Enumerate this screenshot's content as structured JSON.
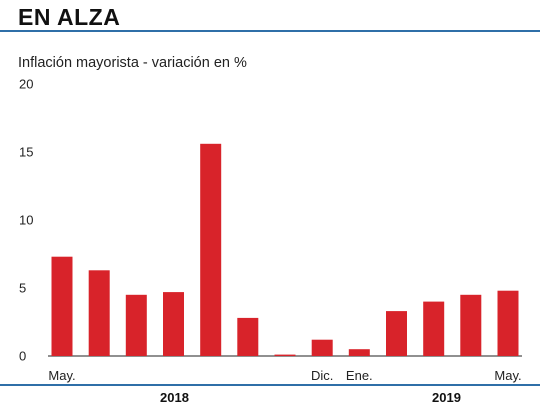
{
  "header": {
    "title": "EN ALZA",
    "subtitle": "Inflación mayorista - variación en %"
  },
  "colors": {
    "bar": "#d8232a",
    "rule": "#2f6fa8",
    "text": "#222222"
  },
  "chart_data": {
    "type": "bar",
    "title": "EN ALZA",
    "subtitle": "Inflación mayorista - variación en %",
    "xlabel": "",
    "ylabel": "",
    "ylim": [
      0,
      20
    ],
    "yticks": [
      0,
      5,
      10,
      15,
      20
    ],
    "grid": false,
    "categories": [
      "May.",
      "",
      "",
      "",
      "",
      "",
      "",
      "Dic.",
      "Ene.",
      "",
      "",
      "",
      "May."
    ],
    "values": [
      7.3,
      6.3,
      4.5,
      4.7,
      15.6,
      2.8,
      0.1,
      1.2,
      0.5,
      3.3,
      4.0,
      4.5,
      4.8
    ],
    "year_labels": [
      "2018",
      "2019"
    ]
  }
}
